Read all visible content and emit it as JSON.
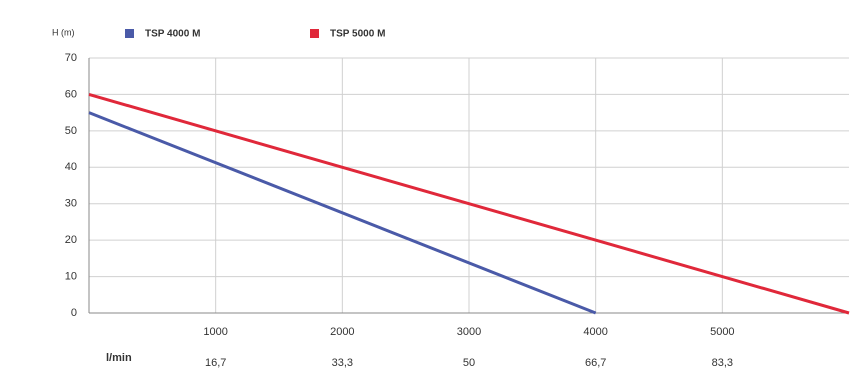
{
  "chart_data": {
    "type": "line",
    "y_label": "H (m)",
    "x2_unit": "l/min",
    "x": [
      0,
      4000,
      6000
    ],
    "series": [
      {
        "name": "TSP 4000 M",
        "color": "#4a5aa8",
        "values": [
          55,
          0,
          null
        ]
      },
      {
        "name": "TSP 5000 M",
        "color": "#e0283a",
        "values": [
          60,
          null,
          0
        ]
      }
    ],
    "xlim": [
      0,
      6000
    ],
    "xticks": [
      1000,
      2000,
      3000,
      4000,
      5000
    ],
    "x2_labels": [
      "16,7",
      "33,3",
      "50",
      "66,7",
      "83,3"
    ],
    "ylim": [
      0,
      70
    ],
    "yticks": [
      0,
      10,
      20,
      30,
      40,
      50,
      60,
      70
    ],
    "grid": true
  }
}
